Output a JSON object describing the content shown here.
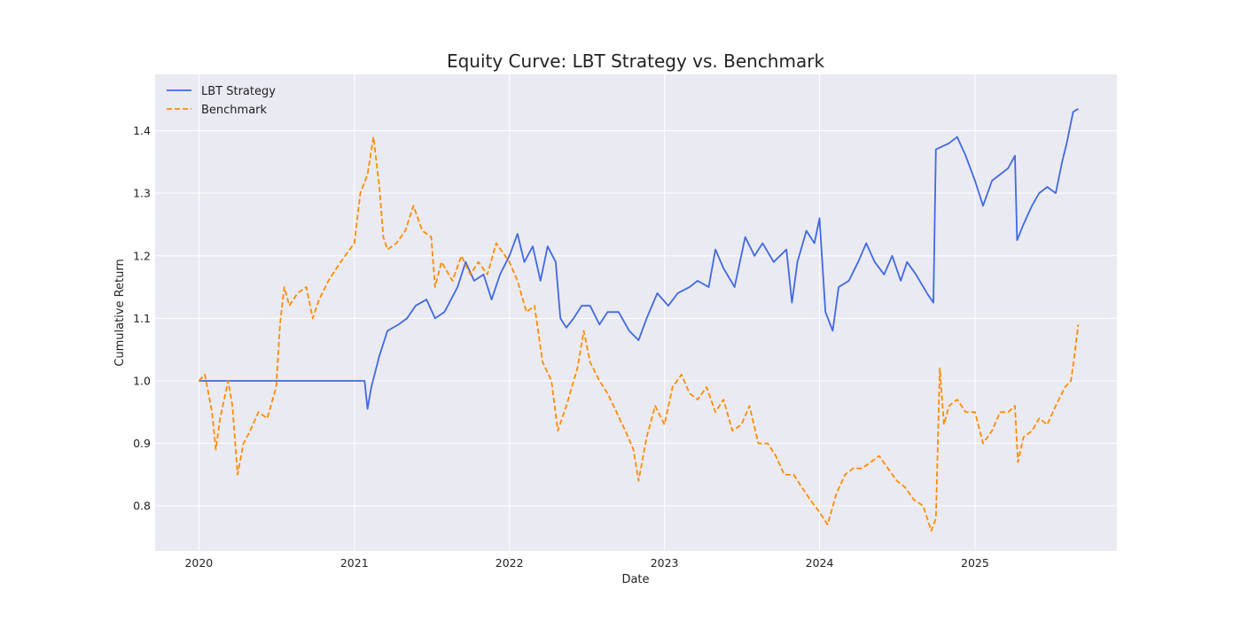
{
  "chart_data": {
    "type": "line",
    "title": "Equity Curve: LBT Strategy vs. Benchmark",
    "xlabel": "Date",
    "ylabel": "Cumulative Return",
    "x_ticks": [
      "2020",
      "2021",
      "2022",
      "2023",
      "2024",
      "2025"
    ],
    "y_ticks": [
      "0.8",
      "0.9",
      "1.0",
      "1.1",
      "1.2",
      "1.3",
      "1.4"
    ],
    "xlim": [
      "2019-09-20",
      "2025-12-01"
    ],
    "ylim": [
      0.728,
      1.49
    ],
    "grid": true,
    "legend_position": "top-left",
    "background_color": "#eaeaf2",
    "series": [
      {
        "name": "LBT Strategy",
        "color": "#4169e1",
        "style": "solid",
        "points": [
          [
            "2020-01-01",
            1.0
          ],
          [
            "2021-01-25",
            1.0
          ],
          [
            "2021-02-01",
            0.955
          ],
          [
            "2021-02-10",
            0.99
          ],
          [
            "2021-03-01",
            1.04
          ],
          [
            "2021-03-20",
            1.08
          ],
          [
            "2021-04-15",
            1.09
          ],
          [
            "2021-05-05",
            1.1
          ],
          [
            "2021-05-25",
            1.12
          ],
          [
            "2021-06-20",
            1.13
          ],
          [
            "2021-07-10",
            1.1
          ],
          [
            "2021-08-01",
            1.11
          ],
          [
            "2021-09-01",
            1.15
          ],
          [
            "2021-09-20",
            1.19
          ],
          [
            "2021-10-10",
            1.16
          ],
          [
            "2021-11-01",
            1.17
          ],
          [
            "2021-11-20",
            1.13
          ],
          [
            "2021-12-10",
            1.17
          ],
          [
            "2022-01-01",
            1.2
          ],
          [
            "2022-01-20",
            1.235
          ],
          [
            "2022-02-05",
            1.19
          ],
          [
            "2022-02-25",
            1.215
          ],
          [
            "2022-03-15",
            1.16
          ],
          [
            "2022-04-01",
            1.215
          ],
          [
            "2022-04-20",
            1.19
          ],
          [
            "2022-05-01",
            1.1
          ],
          [
            "2022-05-15",
            1.085
          ],
          [
            "2022-06-01",
            1.1
          ],
          [
            "2022-06-20",
            1.12
          ],
          [
            "2022-07-10",
            1.12
          ],
          [
            "2022-08-01",
            1.09
          ],
          [
            "2022-08-20",
            1.11
          ],
          [
            "2022-09-15",
            1.11
          ],
          [
            "2022-10-10",
            1.08
          ],
          [
            "2022-11-01",
            1.065
          ],
          [
            "2022-11-20",
            1.1
          ],
          [
            "2022-12-15",
            1.14
          ],
          [
            "2023-01-10",
            1.12
          ],
          [
            "2023-02-01",
            1.14
          ],
          [
            "2023-03-01",
            1.15
          ],
          [
            "2023-03-20",
            1.16
          ],
          [
            "2023-04-15",
            1.15
          ],
          [
            "2023-05-01",
            1.21
          ],
          [
            "2023-05-20",
            1.18
          ],
          [
            "2023-06-15",
            1.15
          ],
          [
            "2023-07-10",
            1.23
          ],
          [
            "2023-08-01",
            1.2
          ],
          [
            "2023-08-20",
            1.22
          ],
          [
            "2023-09-15",
            1.19
          ],
          [
            "2023-10-15",
            1.21
          ],
          [
            "2023-10-28",
            1.125
          ],
          [
            "2023-11-10",
            1.19
          ],
          [
            "2023-12-01",
            1.24
          ],
          [
            "2023-12-20",
            1.22
          ],
          [
            "2024-01-01",
            1.26
          ],
          [
            "2024-01-15",
            1.11
          ],
          [
            "2024-02-01",
            1.08
          ],
          [
            "2024-02-15",
            1.15
          ],
          [
            "2024-03-10",
            1.16
          ],
          [
            "2024-04-01",
            1.19
          ],
          [
            "2024-04-20",
            1.22
          ],
          [
            "2024-05-10",
            1.19
          ],
          [
            "2024-06-01",
            1.17
          ],
          [
            "2024-06-20",
            1.2
          ],
          [
            "2024-07-10",
            1.16
          ],
          [
            "2024-07-25",
            1.19
          ],
          [
            "2024-08-15",
            1.17
          ],
          [
            "2024-09-10",
            1.14
          ],
          [
            "2024-09-25",
            1.125
          ],
          [
            "2024-10-01",
            1.37
          ],
          [
            "2024-11-01",
            1.38
          ],
          [
            "2024-11-20",
            1.39
          ],
          [
            "2024-12-10",
            1.36
          ],
          [
            "2025-01-01",
            1.32
          ],
          [
            "2025-01-20",
            1.28
          ],
          [
            "2025-02-10",
            1.32
          ],
          [
            "2025-03-01",
            1.33
          ],
          [
            "2025-03-20",
            1.34
          ],
          [
            "2025-04-05",
            1.36
          ],
          [
            "2025-04-10",
            1.225
          ],
          [
            "2025-04-25",
            1.25
          ],
          [
            "2025-05-15",
            1.28
          ],
          [
            "2025-06-01",
            1.3
          ],
          [
            "2025-06-20",
            1.31
          ],
          [
            "2025-07-10",
            1.3
          ],
          [
            "2025-07-25",
            1.35
          ],
          [
            "2025-08-05",
            1.38
          ],
          [
            "2025-08-20",
            1.43
          ],
          [
            "2025-09-01",
            1.435
          ]
        ]
      },
      {
        "name": "Benchmark",
        "color": "#ff8c00",
        "style": "dashed",
        "points": [
          [
            "2020-01-01",
            1.0
          ],
          [
            "2020-01-15",
            1.01
          ],
          [
            "2020-02-01",
            0.95
          ],
          [
            "2020-02-10",
            0.89
          ],
          [
            "2020-02-20",
            0.94
          ],
          [
            "2020-03-10",
            1.0
          ],
          [
            "2020-03-20",
            0.96
          ],
          [
            "2020-04-01",
            0.85
          ],
          [
            "2020-04-15",
            0.9
          ],
          [
            "2020-05-01",
            0.92
          ],
          [
            "2020-05-20",
            0.95
          ],
          [
            "2020-06-10",
            0.94
          ],
          [
            "2020-07-01",
            0.99
          ],
          [
            "2020-07-10",
            1.09
          ],
          [
            "2020-07-20",
            1.15
          ],
          [
            "2020-08-01",
            1.12
          ],
          [
            "2020-08-20",
            1.14
          ],
          [
            "2020-09-10",
            1.15
          ],
          [
            "2020-09-25",
            1.1
          ],
          [
            "2020-10-10",
            1.13
          ],
          [
            "2020-11-01",
            1.16
          ],
          [
            "2020-11-20",
            1.18
          ],
          [
            "2020-12-10",
            1.2
          ],
          [
            "2021-01-01",
            1.22
          ],
          [
            "2021-01-15",
            1.3
          ],
          [
            "2021-02-01",
            1.33
          ],
          [
            "2021-02-15",
            1.39
          ],
          [
            "2021-03-01",
            1.31
          ],
          [
            "2021-03-10",
            1.23
          ],
          [
            "2021-03-20",
            1.21
          ],
          [
            "2021-04-10",
            1.22
          ],
          [
            "2021-05-01",
            1.24
          ],
          [
            "2021-05-20",
            1.28
          ],
          [
            "2021-06-10",
            1.24
          ],
          [
            "2021-07-01",
            1.23
          ],
          [
            "2021-07-10",
            1.15
          ],
          [
            "2021-07-25",
            1.19
          ],
          [
            "2021-08-20",
            1.16
          ],
          [
            "2021-09-10",
            1.2
          ],
          [
            "2021-10-01",
            1.17
          ],
          [
            "2021-10-20",
            1.19
          ],
          [
            "2021-11-10",
            1.17
          ],
          [
            "2021-12-01",
            1.22
          ],
          [
            "2022-01-01",
            1.19
          ],
          [
            "2022-01-20",
            1.16
          ],
          [
            "2022-02-10",
            1.11
          ],
          [
            "2022-03-01",
            1.12
          ],
          [
            "2022-03-20",
            1.03
          ],
          [
            "2022-04-10",
            1.0
          ],
          [
            "2022-04-25",
            0.92
          ],
          [
            "2022-05-15",
            0.96
          ],
          [
            "2022-06-10",
            1.02
          ],
          [
            "2022-06-25",
            1.08
          ],
          [
            "2022-07-10",
            1.03
          ],
          [
            "2022-08-01",
            1.0
          ],
          [
            "2022-08-20",
            0.98
          ],
          [
            "2022-09-10",
            0.95
          ],
          [
            "2022-10-01",
            0.92
          ],
          [
            "2022-10-20",
            0.89
          ],
          [
            "2022-11-01",
            0.84
          ],
          [
            "2022-11-20",
            0.91
          ],
          [
            "2022-12-10",
            0.96
          ],
          [
            "2023-01-01",
            0.93
          ],
          [
            "2023-01-20",
            0.99
          ],
          [
            "2023-02-10",
            1.01
          ],
          [
            "2023-03-01",
            0.98
          ],
          [
            "2023-03-20",
            0.97
          ],
          [
            "2023-04-10",
            0.99
          ],
          [
            "2023-05-01",
            0.95
          ],
          [
            "2023-05-20",
            0.97
          ],
          [
            "2023-06-10",
            0.92
          ],
          [
            "2023-07-01",
            0.93
          ],
          [
            "2023-07-20",
            0.96
          ],
          [
            "2023-08-10",
            0.9
          ],
          [
            "2023-09-01",
            0.9
          ],
          [
            "2023-09-20",
            0.88
          ],
          [
            "2023-10-10",
            0.85
          ],
          [
            "2023-11-01",
            0.85
          ],
          [
            "2023-11-20",
            0.83
          ],
          [
            "2023-12-10",
            0.81
          ],
          [
            "2024-01-01",
            0.79
          ],
          [
            "2024-01-20",
            0.77
          ],
          [
            "2024-02-10",
            0.82
          ],
          [
            "2024-03-01",
            0.85
          ],
          [
            "2024-03-20",
            0.86
          ],
          [
            "2024-04-10",
            0.86
          ],
          [
            "2024-05-01",
            0.87
          ],
          [
            "2024-05-20",
            0.88
          ],
          [
            "2024-06-10",
            0.86
          ],
          [
            "2024-07-01",
            0.84
          ],
          [
            "2024-07-20",
            0.83
          ],
          [
            "2024-08-10",
            0.81
          ],
          [
            "2024-09-01",
            0.8
          ],
          [
            "2024-09-20",
            0.76
          ],
          [
            "2024-10-01",
            0.78
          ],
          [
            "2024-10-10",
            1.02
          ],
          [
            "2024-10-20",
            0.93
          ],
          [
            "2024-11-01",
            0.96
          ],
          [
            "2024-11-20",
            0.97
          ],
          [
            "2024-12-10",
            0.95
          ],
          [
            "2025-01-01",
            0.95
          ],
          [
            "2025-01-20",
            0.9
          ],
          [
            "2025-02-10",
            0.92
          ],
          [
            "2025-03-01",
            0.95
          ],
          [
            "2025-03-20",
            0.95
          ],
          [
            "2025-04-05",
            0.96
          ],
          [
            "2025-04-12",
            0.87
          ],
          [
            "2025-04-25",
            0.91
          ],
          [
            "2025-05-15",
            0.92
          ],
          [
            "2025-06-01",
            0.94
          ],
          [
            "2025-06-20",
            0.93
          ],
          [
            "2025-07-10",
            0.96
          ],
          [
            "2025-08-01",
            0.99
          ],
          [
            "2025-08-15",
            1.0
          ],
          [
            "2025-08-25",
            1.05
          ],
          [
            "2025-09-01",
            1.09
          ]
        ]
      }
    ]
  }
}
